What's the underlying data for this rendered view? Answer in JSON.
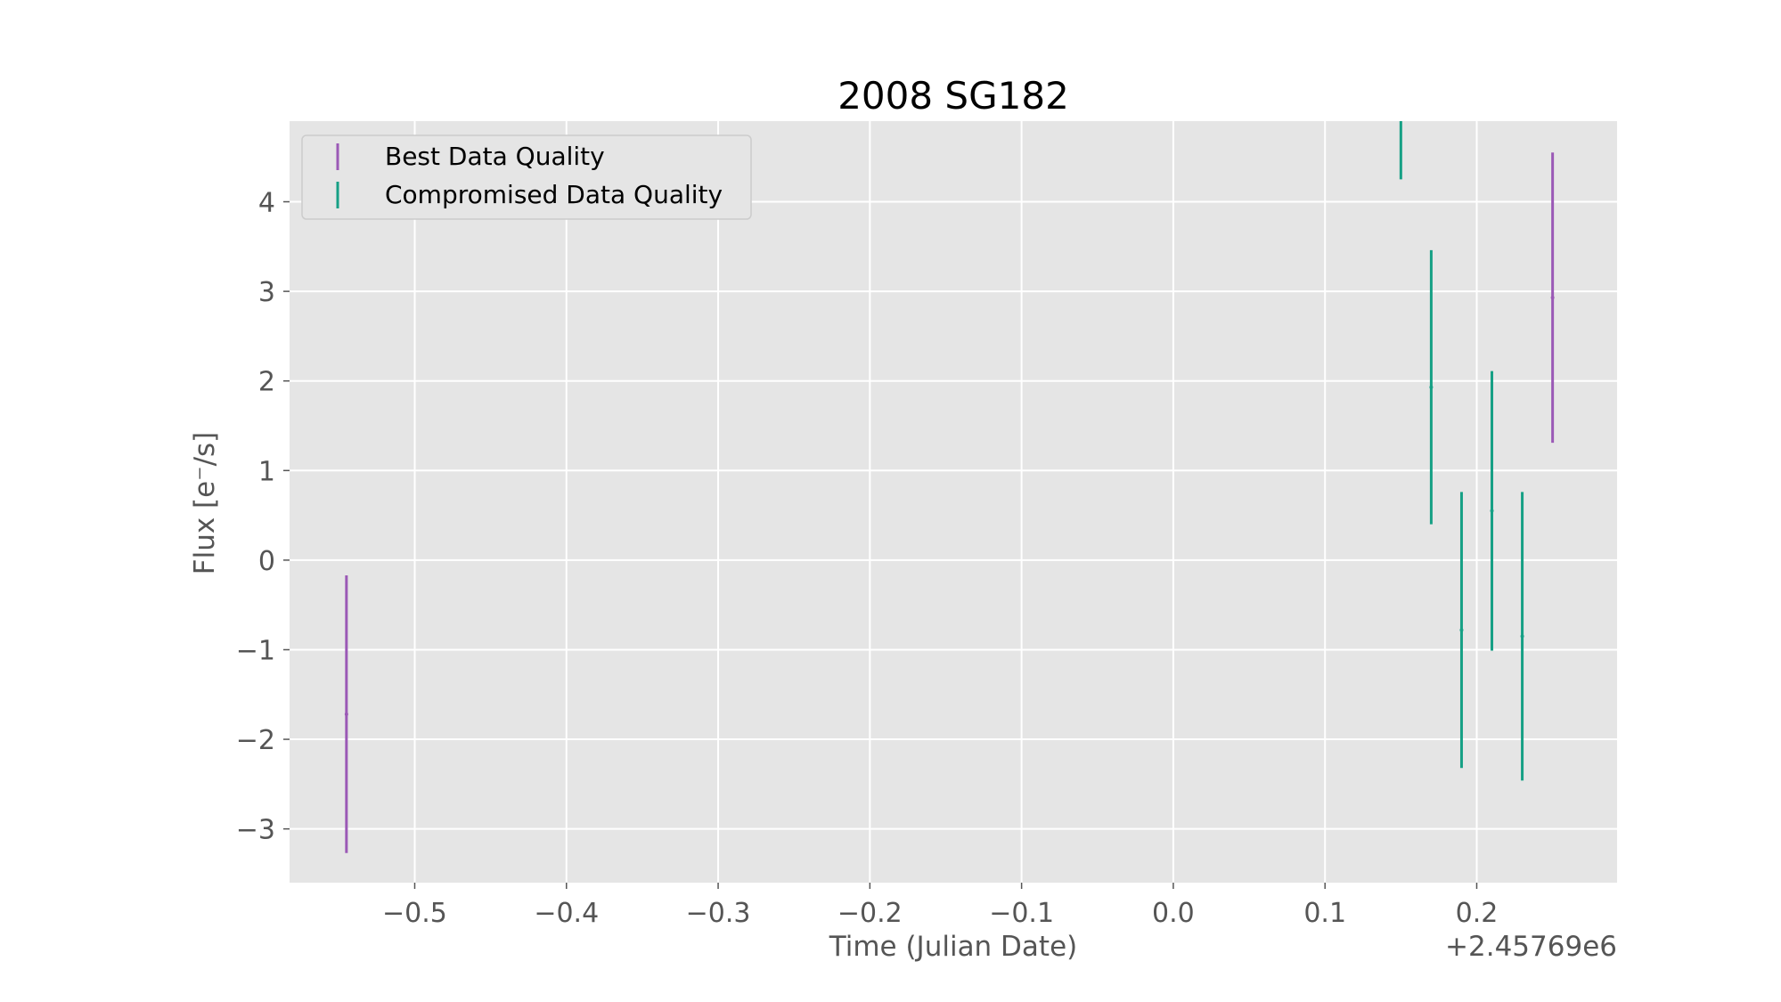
{
  "chart_data": {
    "type": "scatter",
    "title": "2008 SG182",
    "xlabel": "Time (Julian Date)",
    "ylabel": "Flux [e⁻/s]",
    "x_offset_label": "+2.45769e6",
    "xlim": [
      -0.5825,
      0.2925
    ],
    "ylim": [
      -3.6,
      4.9
    ],
    "xticks": [
      -0.5,
      -0.4,
      -0.3,
      -0.2,
      -0.1,
      0.0,
      0.1,
      0.2
    ],
    "xtick_labels": [
      "−0.5",
      "−0.4",
      "−0.3",
      "−0.2",
      "−0.1",
      "0.0",
      "0.1",
      "0.2"
    ],
    "yticks": [
      -3,
      -2,
      -1,
      0,
      1,
      2,
      3,
      4
    ],
    "ytick_labels": [
      "−3",
      "−2",
      "−1",
      "0",
      "1",
      "2",
      "3",
      "4"
    ],
    "grid": true,
    "legend_position": "top-left",
    "series": [
      {
        "name": "Best Data Quality",
        "color": "#9b59b6",
        "points": [
          {
            "x": -0.545,
            "y": -1.72,
            "yerr": 1.55
          },
          {
            "x": 0.25,
            "y": 2.93,
            "yerr": 1.62
          }
        ]
      },
      {
        "name": "Compromised Data Quality",
        "color": "#16a085",
        "points": [
          {
            "x": 0.15,
            "y": 5.1,
            "yerr": 0.85
          },
          {
            "x": 0.17,
            "y": 1.93,
            "yerr": 1.53
          },
          {
            "x": 0.19,
            "y": -0.78,
            "yerr": 1.54
          },
          {
            "x": 0.21,
            "y": 0.55,
            "yerr": 1.56
          },
          {
            "x": 0.23,
            "y": -0.85,
            "yerr": 1.61
          }
        ]
      }
    ]
  }
}
